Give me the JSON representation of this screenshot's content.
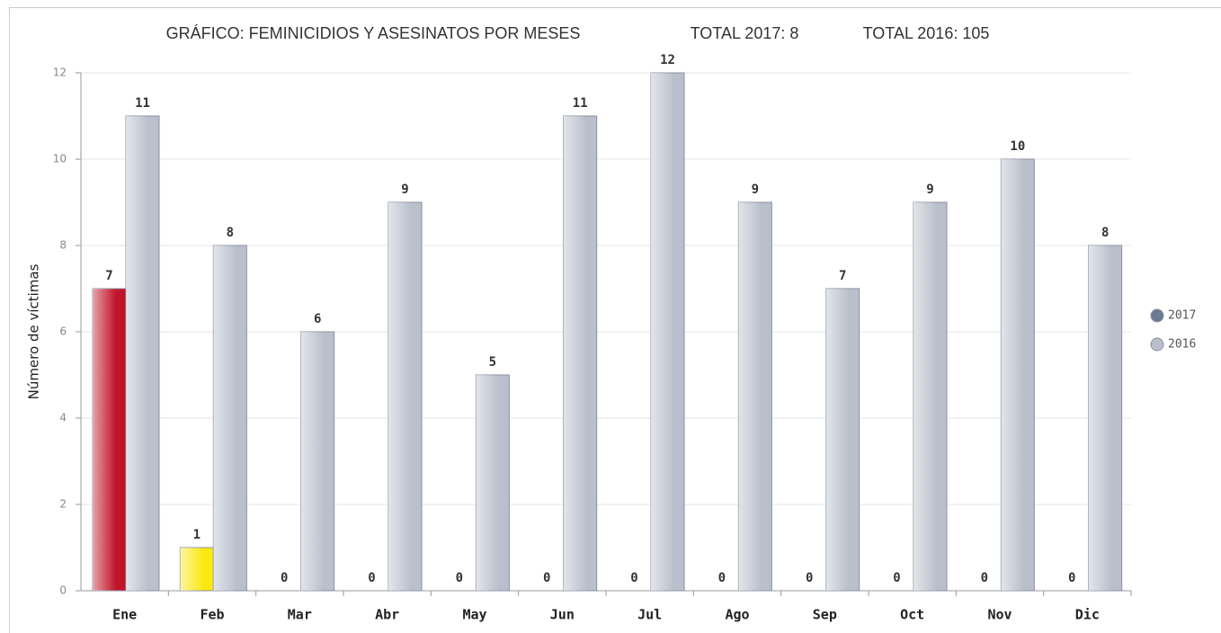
{
  "chart_data": {
    "type": "bar",
    "title": "GRÁFICO: FEMINICIDIOS Y ASESINATOS POR MESES",
    "totals": [
      "TOTAL 2017: 8",
      "TOTAL 2016: 105"
    ],
    "y_label": "Número de víctimas",
    "categories": [
      "Ene",
      "Feb",
      "Mar",
      "Abr",
      "May",
      "Jun",
      "Jul",
      "Ago",
      "Sep",
      "Oct",
      "Nov",
      "Dic"
    ],
    "series": [
      {
        "name": "2017",
        "color": "#6b7a91",
        "colors": [
          "#c0152a",
          "#fbe812",
          "#6b7a91",
          "#6b7a91",
          "#6b7a91",
          "#6b7a91",
          "#6b7a91",
          "#6b7a91",
          "#6b7a91",
          "#6b7a91",
          "#6b7a91",
          "#6b7a91"
        ],
        "values": [
          7,
          1,
          0,
          0,
          0,
          0,
          0,
          0,
          0,
          0,
          0,
          0
        ]
      },
      {
        "name": "2016",
        "color": "#b9bfcb",
        "values": [
          11,
          8,
          6,
          9,
          5,
          11,
          12,
          9,
          7,
          9,
          10,
          8
        ]
      }
    ],
    "ylim": [
      0,
      12
    ],
    "yticks": [
      0,
      2,
      4,
      6,
      8,
      10,
      12
    ],
    "grid": true,
    "legend": "right"
  }
}
